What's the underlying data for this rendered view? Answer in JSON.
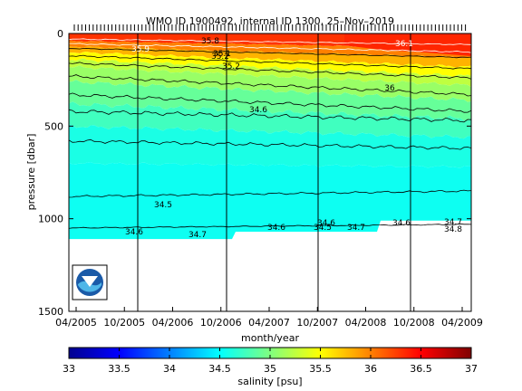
{
  "chart_data": {
    "type": "heatmap",
    "title": "WMO ID 1900492, internal ID 1300, 25–Nov–2019",
    "xlabel": "month/year",
    "ylabel": "pressure [dbar]",
    "colorbar_label": "salinity [psu]",
    "x_ticks": [
      "04/2005",
      "10/2005",
      "04/2006",
      "10/2006",
      "04/2007",
      "10/2007",
      "04/2008",
      "10/2008",
      "04/2009"
    ],
    "y_ticks": [
      "0",
      "500",
      "1000",
      "1500"
    ],
    "y_range": [
      0,
      1500
    ],
    "y_inverted": true,
    "colorbar_ticks": [
      "33",
      "33.5",
      "34",
      "34.5",
      "35",
      "35.5",
      "36",
      "36.5",
      "37"
    ],
    "colorbar_range": [
      33,
      37
    ],
    "colormap": "jet",
    "contour_labels": [
      "35.9",
      "35.8",
      "35.2",
      "35.1",
      "35.2",
      "36",
      "34.6",
      "34.5",
      "34.6",
      "34.7",
      "34.6",
      "34.5",
      "34.7",
      "34.6",
      "34.7",
      "34.6",
      "34.8",
      "36.1"
    ],
    "grid": false,
    "vertical_lines_at": [
      "01/2006",
      "12/2006",
      "12/2007",
      "12/2008"
    ],
    "logo": "NOAA"
  }
}
